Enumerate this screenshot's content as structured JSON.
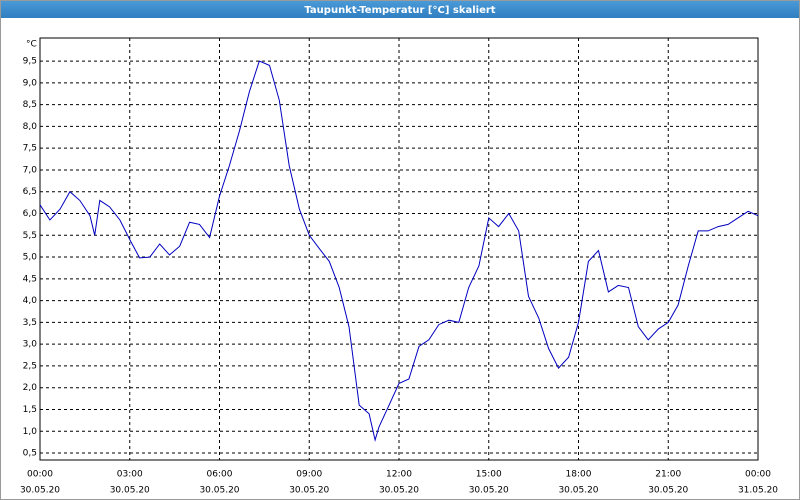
{
  "chart_data": {
    "type": "line",
    "title": "Taupunkt-Temperatur [°C] skaliert",
    "y_unit": "°C",
    "x": [
      0,
      0.33,
      0.67,
      1.0,
      1.33,
      1.67,
      1.83,
      2.0,
      2.33,
      2.67,
      3.0,
      3.33,
      3.67,
      4.0,
      4.33,
      4.67,
      5.0,
      5.33,
      5.67,
      6.0,
      6.33,
      6.67,
      7.0,
      7.33,
      7.67,
      8.0,
      8.33,
      8.67,
      9.0,
      9.33,
      9.67,
      10.0,
      10.33,
      10.67,
      11.0,
      11.2,
      11.33,
      11.67,
      12.0,
      12.33,
      12.67,
      13.0,
      13.33,
      13.67,
      14.0,
      14.33,
      14.67,
      15.0,
      15.33,
      15.67,
      16.0,
      16.33,
      16.67,
      17.0,
      17.33,
      17.67,
      18.0,
      18.33,
      18.67,
      19.0,
      19.33,
      19.67,
      20.0,
      20.33,
      20.67,
      21.0,
      21.33,
      21.67,
      22.0,
      22.33,
      22.67,
      23.0,
      23.33,
      23.67,
      24.0
    ],
    "values": [
      6.2,
      5.85,
      6.1,
      6.5,
      6.3,
      5.95,
      5.5,
      6.3,
      6.15,
      5.85,
      5.4,
      4.98,
      5.0,
      5.3,
      5.05,
      5.25,
      5.8,
      5.75,
      5.45,
      6.4,
      7.1,
      7.9,
      8.8,
      9.5,
      9.4,
      8.6,
      7.1,
      6.1,
      5.5,
      5.2,
      4.9,
      4.3,
      3.4,
      1.6,
      1.4,
      0.8,
      1.1,
      1.6,
      2.1,
      2.2,
      2.95,
      3.1,
      3.45,
      3.55,
      3.5,
      4.3,
      4.8,
      5.9,
      5.7,
      6.0,
      5.6,
      4.1,
      3.6,
      2.9,
      2.45,
      2.7,
      3.5,
      4.9,
      5.15,
      4.2,
      4.35,
      4.3,
      3.4,
      3.1,
      3.35,
      3.5,
      3.9,
      4.8,
      5.6,
      5.6,
      5.7,
      5.75,
      5.9,
      6.05,
      5.95
    ],
    "color": "#0000c0",
    "xlim": [
      0,
      24
    ],
    "ylim": [
      0.34,
      10.03
    ],
    "xticks": [
      {
        "value": 0,
        "label": "00:00",
        "date": "30.05.20"
      },
      {
        "value": 3,
        "label": "03:00",
        "date": "30.05.20"
      },
      {
        "value": 6,
        "label": "06:00",
        "date": "30.05.20"
      },
      {
        "value": 9,
        "label": "09:00",
        "date": "30.05.20"
      },
      {
        "value": 12,
        "label": "12:00",
        "date": "30.05.20"
      },
      {
        "value": 15,
        "label": "15:00",
        "date": "30.05.20"
      },
      {
        "value": 18,
        "label": "18:00",
        "date": "30.05.20"
      },
      {
        "value": 21,
        "label": "21:00",
        "date": "30.05.20"
      },
      {
        "value": 24,
        "label": "00:00",
        "date": "31.05.20"
      }
    ],
    "yticks": [
      {
        "value": 0.5,
        "label": "0,5"
      },
      {
        "value": 1.0,
        "label": "1,0"
      },
      {
        "value": 1.5,
        "label": "1,5"
      },
      {
        "value": 2.0,
        "label": "2,0"
      },
      {
        "value": 2.5,
        "label": "2,5"
      },
      {
        "value": 3.0,
        "label": "3,0"
      },
      {
        "value": 3.5,
        "label": "3,5"
      },
      {
        "value": 4.0,
        "label": "4,0"
      },
      {
        "value": 4.5,
        "label": "4,5"
      },
      {
        "value": 5.0,
        "label": "5,0"
      },
      {
        "value": 5.5,
        "label": "5,5"
      },
      {
        "value": 6.0,
        "label": "6,0"
      },
      {
        "value": 6.5,
        "label": "6,5"
      },
      {
        "value": 7.0,
        "label": "7,0"
      },
      {
        "value": 7.5,
        "label": "7,5"
      },
      {
        "value": 8.0,
        "label": "8,0"
      },
      {
        "value": 8.5,
        "label": "8,5"
      },
      {
        "value": 9.0,
        "label": "9,0"
      },
      {
        "value": 9.5,
        "label": "9,5"
      }
    ],
    "grid": true
  }
}
